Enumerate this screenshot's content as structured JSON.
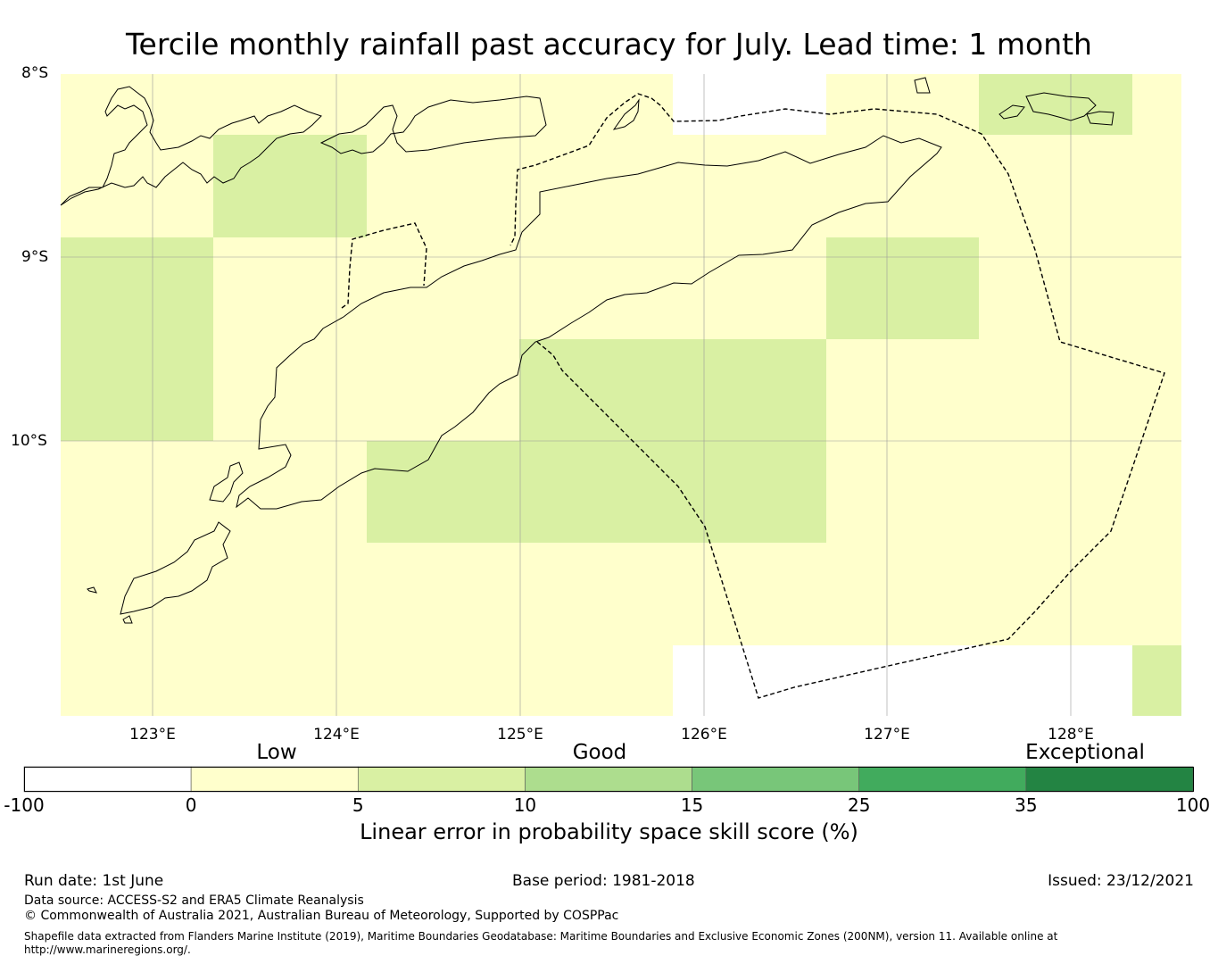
{
  "title": "Tercile monthly rainfall past accuracy for July. Lead time: 1 month",
  "map": {
    "lat_labels": [
      "8°S",
      "9°S",
      "10°S"
    ],
    "lon_labels": [
      "123°E",
      "124°E",
      "125°E",
      "126°E",
      "127°E",
      "128°E"
    ],
    "colors": {
      "low": "#ffffcc",
      "good_5_10": "#d9f0a3",
      "missing": "#ffffff",
      "grid": "#999999",
      "coast": "#000000"
    }
  },
  "colorbar": {
    "categories": [
      "Low",
      "Good",
      "Exceptional"
    ],
    "ticks": [
      "-100",
      "0",
      "5",
      "10",
      "15",
      "25",
      "35",
      "100"
    ],
    "colors": [
      "#ffffff",
      "#ffffcc",
      "#d9f0a3",
      "#addd8e",
      "#78c679",
      "#41ab5d",
      "#238443"
    ],
    "label": "Linear error in probability space skill score (%)"
  },
  "footer": {
    "run_date": "Run date: 1st June",
    "base_period": "Base period: 1981-2018",
    "issued": "Issued: 23/12/2021",
    "data_source": "Data source: ACCESS-S2 and ERA5 Climate Reanalysis",
    "copyright": "© Commonwealth of Australia 2021, Australian Bureau of Meteorology, Supported by COSPPac",
    "shapefile": "Shapefile data extracted from Flanders Marine Institute (2019), Maritime Boundaries Geodatabase: Maritime Boundaries and Exclusive Economic Zones (200NM), version 11. Available online at http://www.marineregions.org/."
  }
}
